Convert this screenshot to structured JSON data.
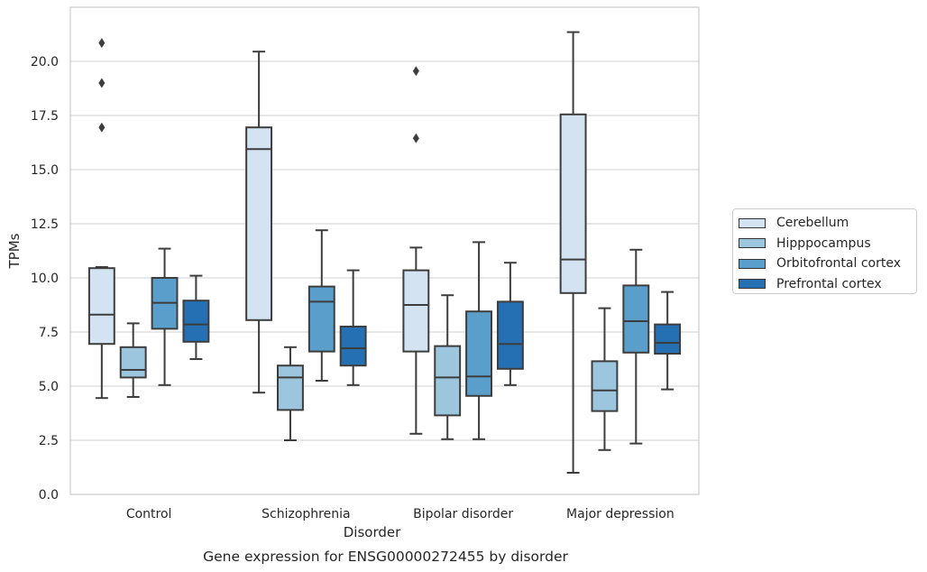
{
  "chart_data": {
    "type": "box",
    "title": "Gene expression for ENSG00000272455 by disorder",
    "xlabel": "Disorder",
    "ylabel": "TPMs",
    "ylim": [
      0,
      22.5
    ],
    "yticks": [
      "0.0",
      "2.5",
      "5.0",
      "7.5",
      "10.0",
      "12.5",
      "15.0",
      "17.5",
      "20.0"
    ],
    "grid": true,
    "legend_position": "right",
    "categories": [
      "Control",
      "Schizophrenia",
      "Bipolar disorder",
      "Major depression"
    ],
    "series": [
      {
        "name": "Cerebellum",
        "color": "#d4e3f2",
        "boxes": [
          {
            "whislo": 4.45,
            "q1": 6.95,
            "med": 8.3,
            "q3": 10.45,
            "whishi": 10.5,
            "fliers": [
              16.95,
              19.0,
              20.85
            ]
          },
          {
            "whislo": 4.7,
            "q1": 8.05,
            "med": 15.95,
            "q3": 16.95,
            "whishi": 20.45,
            "fliers": []
          },
          {
            "whislo": 2.8,
            "q1": 6.6,
            "med": 8.75,
            "q3": 10.35,
            "whishi": 11.4,
            "fliers": [
              16.45,
              19.55
            ]
          },
          {
            "whislo": 1.0,
            "q1": 9.3,
            "med": 10.85,
            "q3": 17.55,
            "whishi": 21.35,
            "fliers": []
          }
        ]
      },
      {
        "name": "Hipppocampus",
        "color": "#9cc5de",
        "boxes": [
          {
            "whislo": 4.5,
            "q1": 5.4,
            "med": 5.75,
            "q3": 6.8,
            "whishi": 7.9,
            "fliers": []
          },
          {
            "whislo": 2.5,
            "q1": 3.9,
            "med": 5.4,
            "q3": 5.95,
            "whishi": 6.8,
            "fliers": []
          },
          {
            "whislo": 2.55,
            "q1": 3.65,
            "med": 5.4,
            "q3": 6.85,
            "whishi": 9.2,
            "fliers": []
          },
          {
            "whislo": 2.05,
            "q1": 3.85,
            "med": 4.8,
            "q3": 6.15,
            "whishi": 8.6,
            "fliers": []
          }
        ]
      },
      {
        "name": "Orbitofrontal cortex",
        "color": "#5a9ecb",
        "boxes": [
          {
            "whislo": 5.05,
            "q1": 7.65,
            "med": 8.85,
            "q3": 10.0,
            "whishi": 11.35,
            "fliers": []
          },
          {
            "whislo": 5.25,
            "q1": 6.6,
            "med": 8.9,
            "q3": 9.6,
            "whishi": 12.2,
            "fliers": []
          },
          {
            "whislo": 2.55,
            "q1": 4.55,
            "med": 5.45,
            "q3": 8.45,
            "whishi": 11.65,
            "fliers": []
          },
          {
            "whislo": 2.35,
            "q1": 6.55,
            "med": 8.0,
            "q3": 9.65,
            "whishi": 11.3,
            "fliers": []
          }
        ]
      },
      {
        "name": "Prefrontal cortex",
        "color": "#2470b3",
        "boxes": [
          {
            "whislo": 6.25,
            "q1": 7.05,
            "med": 7.85,
            "q3": 8.95,
            "whishi": 10.1,
            "fliers": []
          },
          {
            "whislo": 5.05,
            "q1": 5.95,
            "med": 6.75,
            "q3": 7.75,
            "whishi": 10.35,
            "fliers": []
          },
          {
            "whislo": 5.05,
            "q1": 5.8,
            "med": 6.95,
            "q3": 8.9,
            "whishi": 10.7,
            "fliers": []
          },
          {
            "whislo": 4.85,
            "q1": 6.5,
            "med": 7.0,
            "q3": 7.85,
            "whishi": 9.35,
            "fliers": []
          }
        ]
      }
    ]
  }
}
